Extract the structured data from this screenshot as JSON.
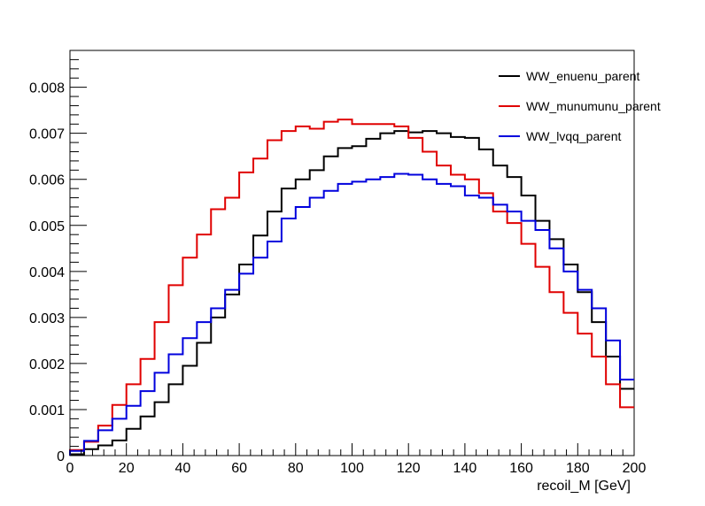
{
  "chart_data": {
    "type": "line",
    "title": "",
    "xlabel": "recoil_M [GeV]",
    "ylabel": "",
    "xlim": [
      0,
      200
    ],
    "ylim": [
      0,
      0.0088
    ],
    "x_ticks": [
      0,
      20,
      40,
      60,
      80,
      100,
      120,
      140,
      160,
      180,
      200
    ],
    "x_tick_labels": [
      "0",
      "20",
      "40",
      "60",
      "80",
      "100",
      "120",
      "140",
      "160",
      "180",
      "200"
    ],
    "y_ticks": [
      0,
      0.001,
      0.002,
      0.003,
      0.004,
      0.005,
      0.006,
      0.007,
      0.008
    ],
    "y_tick_labels": [
      "0",
      "0.001",
      "0.002",
      "0.003",
      "0.004",
      "0.005",
      "0.006",
      "0.007",
      "0.008"
    ],
    "grid": false,
    "legend_position": "top-right",
    "bin_width": 5,
    "x": [
      2.5,
      7.5,
      12.5,
      17.5,
      22.5,
      27.5,
      32.5,
      37.5,
      42.5,
      47.5,
      52.5,
      57.5,
      62.5,
      67.5,
      72.5,
      77.5,
      82.5,
      87.5,
      92.5,
      97.5,
      102.5,
      107.5,
      112.5,
      117.5,
      122.5,
      127.5,
      132.5,
      137.5,
      142.5,
      147.5,
      152.5,
      157.5,
      162.5,
      167.5,
      172.5,
      177.5,
      182.5,
      187.5,
      192.5,
      197.5
    ],
    "series": [
      {
        "name": "WW_enuenu_parent",
        "color": "#000000",
        "values": [
          3e-05,
          0.00014,
          0.00022,
          0.00033,
          0.00058,
          0.00085,
          0.00116,
          0.00155,
          0.00195,
          0.00245,
          0.003,
          0.0035,
          0.00415,
          0.00478,
          0.0053,
          0.0058,
          0.006,
          0.0062,
          0.0065,
          0.00668,
          0.00672,
          0.00688,
          0.007,
          0.00705,
          0.00702,
          0.00705,
          0.007,
          0.00692,
          0.0069,
          0.00665,
          0.0063,
          0.00605,
          0.00565,
          0.0051,
          0.0047,
          0.00415,
          0.00355,
          0.0029,
          0.00215,
          0.00145
        ]
      },
      {
        "name": "WW_munumunu_parent",
        "color": "#e00000",
        "values": [
          0.00012,
          0.0003,
          0.00065,
          0.0011,
          0.00155,
          0.0021,
          0.0029,
          0.0037,
          0.0043,
          0.0048,
          0.00535,
          0.0056,
          0.00615,
          0.00645,
          0.00685,
          0.00705,
          0.00715,
          0.0071,
          0.00725,
          0.0073,
          0.0072,
          0.0072,
          0.0072,
          0.00715,
          0.0069,
          0.0066,
          0.0063,
          0.0061,
          0.006,
          0.0057,
          0.0053,
          0.00505,
          0.0046,
          0.0041,
          0.00355,
          0.0031,
          0.00265,
          0.00215,
          0.00155,
          0.00105
        ]
      },
      {
        "name": "WW_lvqq_parent",
        "color": "#0000dd",
        "values": [
          0.0001,
          0.00032,
          0.00055,
          0.0008,
          0.00108,
          0.0014,
          0.0018,
          0.0022,
          0.00255,
          0.0029,
          0.0032,
          0.0036,
          0.00395,
          0.0043,
          0.00465,
          0.00515,
          0.0054,
          0.0056,
          0.00575,
          0.0059,
          0.00595,
          0.006,
          0.00605,
          0.00612,
          0.0061,
          0.006,
          0.0059,
          0.00585,
          0.00565,
          0.0056,
          0.00545,
          0.0053,
          0.0051,
          0.0049,
          0.0045,
          0.004,
          0.0036,
          0.0032,
          0.0025,
          0.00165
        ]
      }
    ]
  }
}
